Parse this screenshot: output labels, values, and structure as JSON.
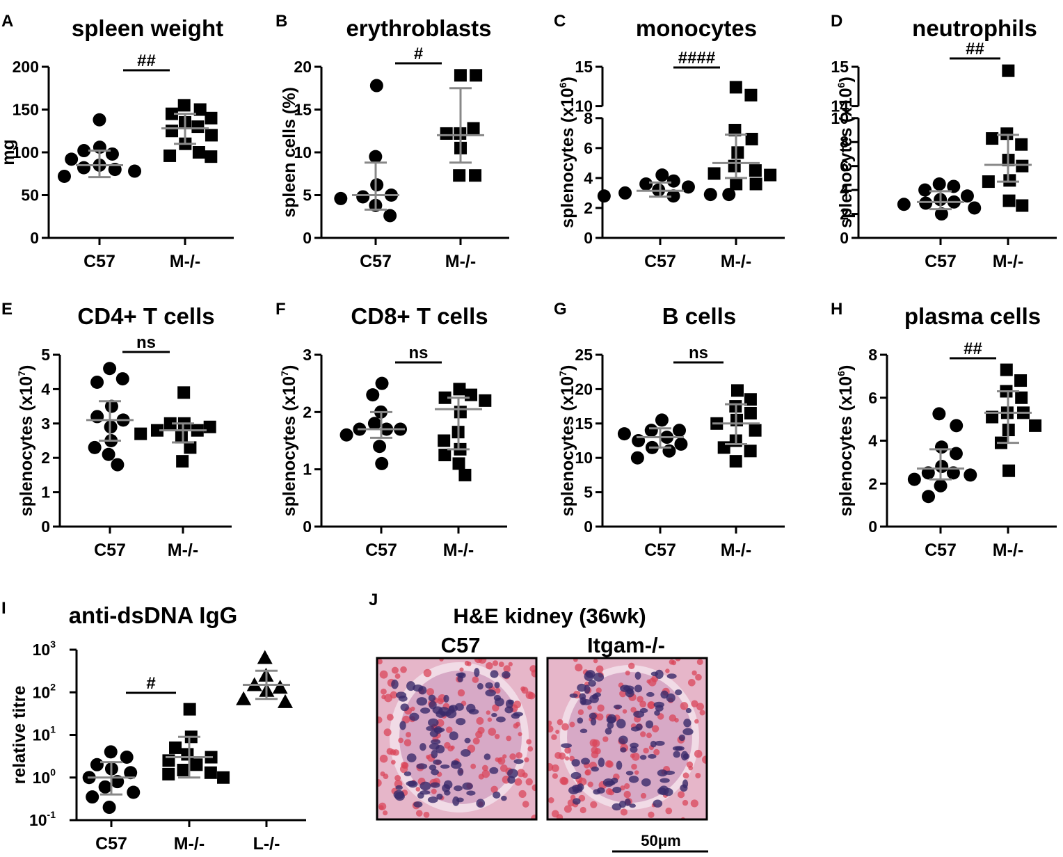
{
  "colors": {
    "error_bars": "#888888",
    "points": "#000000",
    "tissue_bg": "#e8b7c8",
    "tissue_nuclei": "#3a2a6a",
    "tissue_rbc": "#d9455a"
  },
  "chart_data": [
    {
      "id": "A",
      "type": "scatter",
      "title": "spleen weight",
      "ylabel": "mg",
      "categories": [
        "C57",
        "M-/-"
      ],
      "ylim": [
        0,
        200
      ],
      "yticks": [
        "0",
        "50",
        "100",
        "150",
        "200"
      ],
      "sig": "##",
      "groups": [
        {
          "name": "C57",
          "marker": "circle",
          "values": [
            138,
            106,
            102,
            98,
            92,
            85,
            82,
            80,
            78,
            72
          ],
          "mean": 85,
          "err": [
            71,
            102
          ]
        },
        {
          "name": "M-/-",
          "marker": "square",
          "values": [
            155,
            150,
            145,
            140,
            135,
            130,
            125,
            120,
            110,
            100,
            96,
            95
          ],
          "mean": 128,
          "err": [
            110,
            145
          ]
        }
      ]
    },
    {
      "id": "B",
      "type": "scatter",
      "title": "erythroblasts",
      "ylabel": "spleen cells (%)",
      "categories": [
        "C57",
        "M-/-"
      ],
      "ylim": [
        0,
        20
      ],
      "yticks": [
        "0",
        "5",
        "10",
        "15",
        "20"
      ],
      "sig": "#",
      "groups": [
        {
          "name": "C57",
          "marker": "circle",
          "values": [
            17.8,
            9.5,
            6.2,
            5.0,
            4.8,
            4.6,
            3.8,
            2.6
          ],
          "mean": 5.0,
          "err": [
            3.3,
            8.8
          ]
        },
        {
          "name": "M-/-",
          "marker": "square",
          "values": [
            19.0,
            19.0,
            12.2,
            12.8,
            12.2,
            10.5,
            7.3,
            7.3
          ],
          "mean": 12.0,
          "err": [
            8.8,
            17.5
          ]
        }
      ]
    },
    {
      "id": "C",
      "type": "scatter",
      "title": "monocytes",
      "ylabel": "splenocytes (x10",
      "ylabel_exp": "6",
      "categories": [
        "C57",
        "M-/-"
      ],
      "ylim": [
        0,
        15
      ],
      "yticks": [
        "0",
        "2",
        "4",
        "6",
        "8",
        "10",
        "15"
      ],
      "axis_break": [
        8,
        10
      ],
      "sig": "####",
      "groups": [
        {
          "name": "C57",
          "marker": "circle",
          "values": [
            4.2,
            3.8,
            3.6,
            3.4,
            3.2,
            3.0,
            2.9,
            2.8,
            2.8,
            2.9
          ],
          "mean": 3.15,
          "err": [
            2.75,
            3.7
          ]
        },
        {
          "name": "M-/-",
          "marker": "square",
          "values": [
            12.4,
            11.4,
            7.2,
            6.6,
            5.7,
            4.8,
            4.5,
            4.3,
            4.2,
            3.6,
            3.6
          ],
          "mean": 5.0,
          "err": [
            4.0,
            6.9
          ]
        }
      ]
    },
    {
      "id": "D",
      "type": "scatter",
      "title": "neutrophils",
      "ylabel": "splenocytes (x10",
      "ylabel_exp": "6",
      "categories": [
        "C57",
        "M-/-"
      ],
      "ylim": [
        0,
        15
      ],
      "yticks": [
        "0",
        "2",
        "4",
        "6",
        "8",
        "10",
        "14",
        "15"
      ],
      "axis_break": [
        10,
        14
      ],
      "sig": "##",
      "groups": [
        {
          "name": "C57",
          "marker": "circle",
          "values": [
            4.5,
            4.3,
            4.0,
            3.5,
            3.2,
            3.0,
            2.9,
            2.8,
            2.5,
            2.0
          ],
          "mean": 3.0,
          "err": [
            2.4,
            3.9
          ]
        },
        {
          "name": "M-/-",
          "marker": "square",
          "values": [
            14.9,
            8.7,
            8.3,
            7.8,
            6.5,
            6.0,
            4.8,
            4.7,
            3.1,
            2.7
          ],
          "mean": 6.1,
          "err": [
            4.7,
            8.6
          ]
        }
      ]
    },
    {
      "id": "E",
      "type": "scatter",
      "title": "CD4+ T cells",
      "ylabel": "splenocytes (x10",
      "ylabel_exp": "7",
      "categories": [
        "C57",
        "M-/-"
      ],
      "ylim": [
        0,
        5
      ],
      "yticks": [
        "0",
        "1",
        "2",
        "3",
        "4",
        "5"
      ],
      "sig": "ns",
      "groups": [
        {
          "name": "C57",
          "marker": "circle",
          "values": [
            4.6,
            4.3,
            4.2,
            3.5,
            3.2,
            3.1,
            2.9,
            2.5,
            2.3,
            2.1,
            1.8
          ],
          "mean": 3.1,
          "err": [
            2.5,
            3.65
          ]
        },
        {
          "name": "M-/-",
          "marker": "square",
          "values": [
            3.9,
            3.0,
            3.0,
            2.9,
            2.8,
            2.8,
            2.7,
            2.6,
            2.3,
            1.9
          ],
          "mean": 2.8,
          "err": [
            2.45,
            3.0
          ]
        }
      ]
    },
    {
      "id": "F",
      "type": "scatter",
      "title": "CD8+ T cells",
      "ylabel": "splenocytes (x10",
      "ylabel_exp": "7",
      "categories": [
        "C57",
        "M-/-"
      ],
      "ylim": [
        0,
        3
      ],
      "yticks": [
        "0",
        "1",
        "2",
        "3"
      ],
      "sig": "ns",
      "groups": [
        {
          "name": "C57",
          "marker": "circle",
          "values": [
            2.5,
            2.3,
            2.0,
            1.8,
            1.7,
            1.7,
            1.7,
            1.6,
            1.4,
            1.1
          ],
          "mean": 1.7,
          "err": [
            1.55,
            2.0
          ]
        },
        {
          "name": "M-/-",
          "marker": "square",
          "values": [
            2.4,
            2.3,
            2.25,
            2.2,
            2.0,
            1.65,
            1.5,
            1.35,
            1.25,
            1.1,
            0.9
          ],
          "mean": 2.05,
          "err": [
            1.35,
            2.25
          ]
        }
      ]
    },
    {
      "id": "G",
      "type": "scatter",
      "title": "B cells",
      "ylabel": "splenocytes (x10",
      "ylabel_exp": "7",
      "categories": [
        "C57",
        "M-/-"
      ],
      "ylim": [
        0,
        25
      ],
      "yticks": [
        "0",
        "5",
        "10",
        "15",
        "20",
        "25"
      ],
      "sig": "ns",
      "groups": [
        {
          "name": "C57",
          "marker": "circle",
          "values": [
            15.5,
            14.0,
            14.0,
            13.5,
            13.0,
            12.5,
            12.0,
            11.5,
            11.0,
            10.0
          ],
          "mean": 13.0,
          "err": [
            11.5,
            14.3
          ]
        },
        {
          "name": "M-/-",
          "marker": "square",
          "values": [
            19.8,
            18.5,
            17.5,
            16.5,
            15.5,
            15.0,
            14.0,
            12.5,
            11.5,
            11.0,
            9.5
          ],
          "mean": 15.0,
          "err": [
            12.0,
            17.8
          ]
        }
      ]
    },
    {
      "id": "H",
      "type": "scatter",
      "title": "plasma cells",
      "ylabel": "splenocytes (x10",
      "ylabel_exp": "6",
      "categories": [
        "C57",
        "M-/-"
      ],
      "ylim": [
        0,
        8
      ],
      "yticks": [
        "0",
        "2",
        "4",
        "6",
        "8"
      ],
      "sig": "##",
      "groups": [
        {
          "name": "C57",
          "marker": "circle",
          "values": [
            5.25,
            4.7,
            3.7,
            3.4,
            2.8,
            2.5,
            2.5,
            2.4,
            2.2,
            1.9,
            1.4
          ],
          "mean": 2.7,
          "err": [
            2.2,
            3.6
          ]
        },
        {
          "name": "M-/-",
          "marker": "square",
          "values": [
            7.3,
            6.8,
            6.3,
            6.0,
            5.3,
            5.3,
            5.1,
            4.7,
            4.5,
            3.9,
            2.6
          ],
          "mean": 5.3,
          "err": [
            3.9,
            6.3
          ]
        }
      ]
    },
    {
      "id": "I",
      "type": "scatter",
      "scale": "log",
      "title": "anti-dsDNA IgG",
      "ylabel": "relative titre",
      "categories": [
        "C57",
        "M-/-",
        "L-/-"
      ],
      "ylim": [
        0.1,
        1000
      ],
      "yticks": [
        {
          "base": "10",
          "exp": "-1"
        },
        {
          "base": "10",
          "exp": "0"
        },
        {
          "base": "10",
          "exp": "1"
        },
        {
          "base": "10",
          "exp": "2"
        },
        {
          "base": "10",
          "exp": "3"
        }
      ],
      "sig": "#",
      "groups": [
        {
          "name": "C57",
          "marker": "circle",
          "values": [
            4.0,
            3.0,
            2.0,
            1.6,
            1.3,
            1.0,
            0.8,
            0.6,
            0.45,
            0.35,
            0.2
          ],
          "mean": 1.0,
          "err": [
            0.4,
            2.3
          ]
        },
        {
          "name": "M-/-",
          "marker": "square",
          "values": [
            40,
            9,
            5,
            3.5,
            3.0,
            2.5,
            2.0,
            1.5,
            1.3,
            1.2,
            1.0
          ],
          "mean": 3.0,
          "err": [
            1.0,
            9.0
          ]
        },
        {
          "name": "L-/-",
          "marker": "triangle",
          "values": [
            650,
            250,
            150,
            130,
            110,
            70,
            60
          ],
          "mean": 150,
          "err": [
            70,
            320
          ]
        }
      ]
    }
  ],
  "histology": {
    "panel_letter": "J",
    "title": "H&E kidney (36wk)",
    "images": [
      {
        "label": "C57"
      },
      {
        "label": "Itgam-/-"
      }
    ],
    "scale_bar": "50μm"
  }
}
